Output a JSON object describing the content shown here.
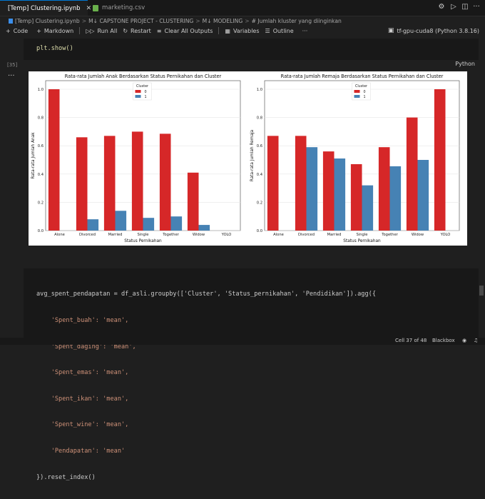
{
  "tabs": [
    {
      "label": "[Temp] Clustering.ipynb",
      "close": "✕"
    },
    {
      "label": "marketing.csv"
    }
  ],
  "breadcrumb": [
    "[Temp] Clustering.ipynb",
    ">",
    "M↓ CAPSTONE PROJECT - CLUSTERING",
    ">",
    "M↓ MODELING",
    ">",
    "# Jumlah kluster yang diinginkan"
  ],
  "toolbar": {
    "code": "Code",
    "markdown": "Markdown",
    "run_all": "Run All",
    "restart": "Restart",
    "clear_outputs": "Clear All Outputs",
    "variables": "Variables",
    "outline": "Outline",
    "more": "···",
    "kernel": "tf-gpu-cuda8 (Python 3.8.16)"
  },
  "cell1": {
    "code": "plt.show()",
    "exec_label": "[35]",
    "output_menu": "···",
    "language": "Python"
  },
  "cell2": {
    "lines": [
      "avg_spent_pendapatan = df_asli.groupby(['Cluster', 'Status_pernikahan', 'Pendidikan']).agg({",
      "    'Spent_buah': 'mean',",
      "    'Spent_daging': 'mean',",
      "    'Spent_emas': 'mean',",
      "    'Spent_ikan': 'mean',",
      "    'Spent_wine': 'mean',",
      "    'Pendapatan': 'mean'",
      "}).reset_index()"
    ]
  },
  "statusbar": {
    "cell": "Cell 37 of 48",
    "theme": "Blackbox"
  },
  "colors": {
    "cluster0": "#d62728",
    "cluster1": "#4682b4",
    "background": "#1f1f1f",
    "accent": "#0078d4"
  },
  "chart_data": [
    {
      "type": "bar",
      "title": "Rata-rata Jumlah Anak Berdasarkan Status Pernikahan dan Cluster",
      "xlabel": "Status Pernikahan",
      "ylabel": "Rata-rata Jumlah Anak",
      "categories": [
        "Alone",
        "Divorced",
        "Married",
        "Single",
        "Together",
        "Widow",
        "YOLO"
      ],
      "ylim": [
        0,
        1.0
      ],
      "yticks": [
        "0.0",
        "0.2",
        "0.4",
        "0.6",
        "0.8",
        "1.0"
      ],
      "legend": {
        "title": "Cluster",
        "position": "top-center"
      },
      "grid": true,
      "series": [
        {
          "name": "0",
          "values": [
            1.0,
            0.66,
            0.67,
            0.7,
            0.685,
            0.41,
            null
          ]
        },
        {
          "name": "1",
          "values": [
            null,
            0.08,
            0.14,
            0.09,
            0.1,
            0.04,
            null
          ]
        }
      ]
    },
    {
      "type": "bar",
      "title": "Rata-rata Jumlah Remaja Berdasarkan Status Pernikahan dan Cluster",
      "xlabel": "Status Pernikahan",
      "ylabel": "Rata-rata Jumlah Remaja",
      "categories": [
        "Alone",
        "Divorced",
        "Married",
        "Single",
        "Together",
        "Widow",
        "YOLO"
      ],
      "ylim": [
        0,
        1.0
      ],
      "yticks": [
        "0.0",
        "0.2",
        "0.4",
        "0.6",
        "0.8",
        "1.0"
      ],
      "legend": {
        "title": "Cluster",
        "position": "top-center"
      },
      "grid": true,
      "series": [
        {
          "name": "0",
          "values": [
            0.67,
            0.67,
            0.56,
            0.47,
            0.59,
            0.8,
            1.0
          ]
        },
        {
          "name": "1",
          "values": [
            null,
            0.59,
            0.51,
            0.32,
            0.455,
            0.5,
            null
          ]
        }
      ]
    }
  ]
}
